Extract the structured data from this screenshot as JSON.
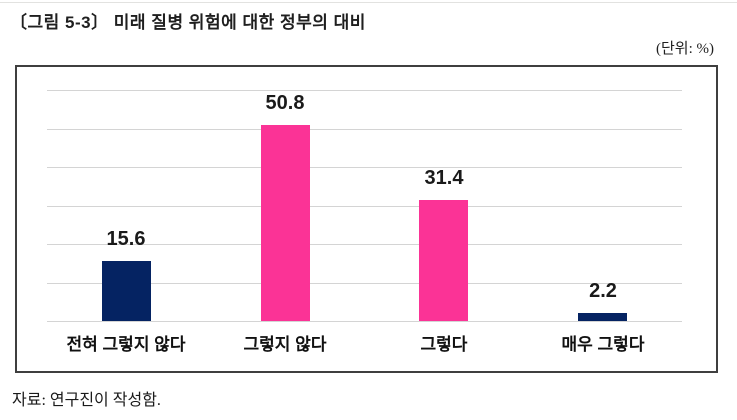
{
  "header": {
    "figure_title": "〔그림 5-3〕 미래 질병 위험에 대한 정부의 대비",
    "unit_label": "(단위: %)"
  },
  "footer": {
    "source_note": "자료: 연구진이 작성함."
  },
  "colors": {
    "navy": "#052362",
    "pink": "#fb3396",
    "gridline": "#d4d4d4",
    "frame_border": "#3f3f3f"
  },
  "chart_data": {
    "type": "bar",
    "title": "미래 질병 위험에 대한 정부의 대비",
    "unit": "%",
    "categories": [
      "전혀 그렇지 않다",
      "그렇지 않다",
      "그렇다",
      "매우 그렇다"
    ],
    "values": [
      15.6,
      50.8,
      31.4,
      2.2
    ],
    "bar_colors": [
      "#052362",
      "#fb3396",
      "#fb3396",
      "#052362"
    ],
    "value_labels": [
      "15.6",
      "50.8",
      "31.4",
      "2.2"
    ],
    "xlabel": "",
    "ylabel": "",
    "ylim": [
      0,
      60
    ],
    "grid_interval": 10,
    "grid": true,
    "legend": false,
    "axis_tick_labels_visible": false
  }
}
